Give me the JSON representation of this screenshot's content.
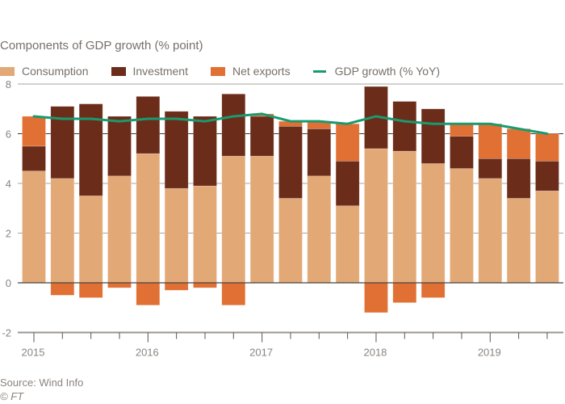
{
  "subtitle": "Components of GDP growth (% point)",
  "legend": [
    {
      "key": "consumption",
      "label": "Consumption",
      "color": "#e2a977",
      "kind": "bar"
    },
    {
      "key": "investment",
      "label": "Investment",
      "color": "#6b2c1a",
      "kind": "bar"
    },
    {
      "key": "net_exports",
      "label": "Net exports",
      "color": "#e07033",
      "kind": "bar"
    },
    {
      "key": "gdp",
      "label": "GDP growth (% YoY)",
      "color": "#1a9a6e",
      "kind": "line"
    }
  ],
  "source": "Source: Wind Info",
  "credit": "© FT",
  "chart_data": {
    "type": "bar",
    "stacked": true,
    "title": "Components of GDP growth (% point)",
    "xlabel": "",
    "ylabel": "",
    "ylim": [
      -2,
      8
    ],
    "yticks": [
      -2,
      0,
      2,
      4,
      6,
      8
    ],
    "grid": true,
    "legend_position": "top-left",
    "categories": [
      "2015Q1",
      "2015Q2",
      "2015Q3",
      "2015Q4",
      "2016Q1",
      "2016Q2",
      "2016Q3",
      "2016Q4",
      "2017Q1",
      "2017Q2",
      "2017Q3",
      "2017Q4",
      "2018Q1",
      "2018Q2",
      "2018Q3",
      "2018Q4",
      "2019Q1",
      "2019Q2",
      "2019Q3"
    ],
    "xtick_labels": [
      {
        "index": 0,
        "label": "2015"
      },
      {
        "index": 4,
        "label": "2016"
      },
      {
        "index": 8,
        "label": "2017"
      },
      {
        "index": 12,
        "label": "2018"
      },
      {
        "index": 16,
        "label": "2019"
      }
    ],
    "series": [
      {
        "name": "Consumption",
        "type": "bar",
        "color": "#e2a977",
        "values": [
          4.5,
          4.2,
          3.5,
          4.3,
          5.2,
          3.8,
          3.9,
          5.1,
          5.1,
          3.4,
          4.3,
          3.1,
          5.4,
          5.3,
          4.8,
          4.6,
          4.2,
          3.4,
          3.7
        ]
      },
      {
        "name": "Investment",
        "type": "bar",
        "color": "#6b2c1a",
        "values": [
          1.0,
          2.9,
          3.7,
          2.4,
          2.3,
          3.1,
          2.8,
          2.5,
          1.6,
          2.9,
          1.9,
          1.8,
          2.5,
          2.0,
          2.2,
          1.3,
          0.8,
          1.6,
          1.2
        ]
      },
      {
        "name": "Net exports",
        "type": "bar",
        "color": "#e07033",
        "values": [
          1.2,
          -0.5,
          -0.6,
          -0.2,
          -0.9,
          -0.3,
          -0.2,
          -0.9,
          0.1,
          0.2,
          0.3,
          1.5,
          -1.2,
          -0.8,
          -0.6,
          0.5,
          1.4,
          1.2,
          1.1
        ]
      },
      {
        "name": "GDP growth (% YoY)",
        "type": "line",
        "color": "#1a9a6e",
        "values": [
          6.7,
          6.6,
          6.6,
          6.5,
          6.6,
          6.6,
          6.5,
          6.7,
          6.8,
          6.5,
          6.5,
          6.4,
          6.7,
          6.5,
          6.4,
          6.4,
          6.4,
          6.2,
          6.0
        ]
      }
    ]
  }
}
